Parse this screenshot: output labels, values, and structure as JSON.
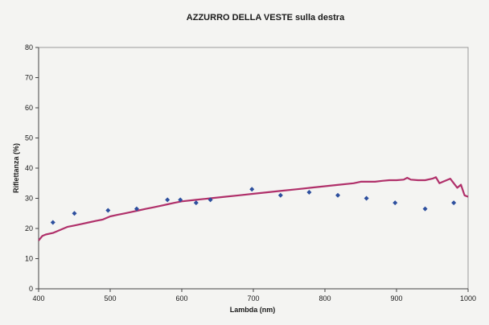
{
  "chart_data": {
    "type": "scatter",
    "title": "AZZURRO DELLA VESTE sulla destra",
    "xlabel": "Lambda (nm)",
    "ylabel": "Riflettanza (%)",
    "xlim": [
      400,
      1000
    ],
    "ylim": [
      0,
      80
    ],
    "xticks": [
      "400",
      "500",
      "600",
      "700",
      "800",
      "900",
      "1000"
    ],
    "yticks": [
      "0",
      "10",
      "20",
      "30",
      "40",
      "50",
      "60",
      "70",
      "80"
    ],
    "grid": false,
    "legend": "none",
    "series": [
      {
        "kind": "points",
        "color": "#2d4f9e",
        "x": [
          420,
          450,
          497,
          537,
          580,
          598,
          620,
          640,
          698,
          738,
          778,
          818,
          858,
          898,
          940,
          980
        ],
        "y": [
          22,
          25,
          26,
          26.5,
          29.5,
          29.5,
          28.5,
          29.5,
          33,
          31,
          32,
          31,
          30,
          28.5,
          26.5,
          28.5
        ]
      },
      {
        "kind": "line",
        "color": "#b0306a",
        "x": [
          400,
          405,
          410,
          420,
          430,
          440,
          450,
          460,
          470,
          480,
          490,
          500,
          510,
          520,
          530,
          540,
          550,
          560,
          570,
          580,
          590,
          600,
          620,
          640,
          660,
          680,
          700,
          720,
          740,
          760,
          780,
          800,
          820,
          840,
          850,
          860,
          870,
          880,
          890,
          900,
          910,
          915,
          920,
          930,
          940,
          950,
          955,
          960,
          965,
          970,
          975,
          980,
          985,
          990,
          995,
          1000
        ],
        "y": [
          16,
          17.5,
          18,
          18.5,
          19.5,
          20.5,
          21,
          21.5,
          22,
          22.5,
          23,
          24,
          24.5,
          25,
          25.5,
          26,
          26.5,
          27,
          27.5,
          28,
          28.5,
          29,
          29.5,
          30,
          30.5,
          31,
          31.5,
          32,
          32.5,
          33,
          33.5,
          34,
          34.5,
          35,
          35.5,
          35.5,
          35.5,
          35.8,
          36,
          36,
          36.2,
          36.8,
          36.2,
          36,
          36,
          36.5,
          37,
          35,
          35.5,
          36,
          36.5,
          35,
          33.5,
          34.5,
          31,
          30.5
        ]
      }
    ]
  }
}
